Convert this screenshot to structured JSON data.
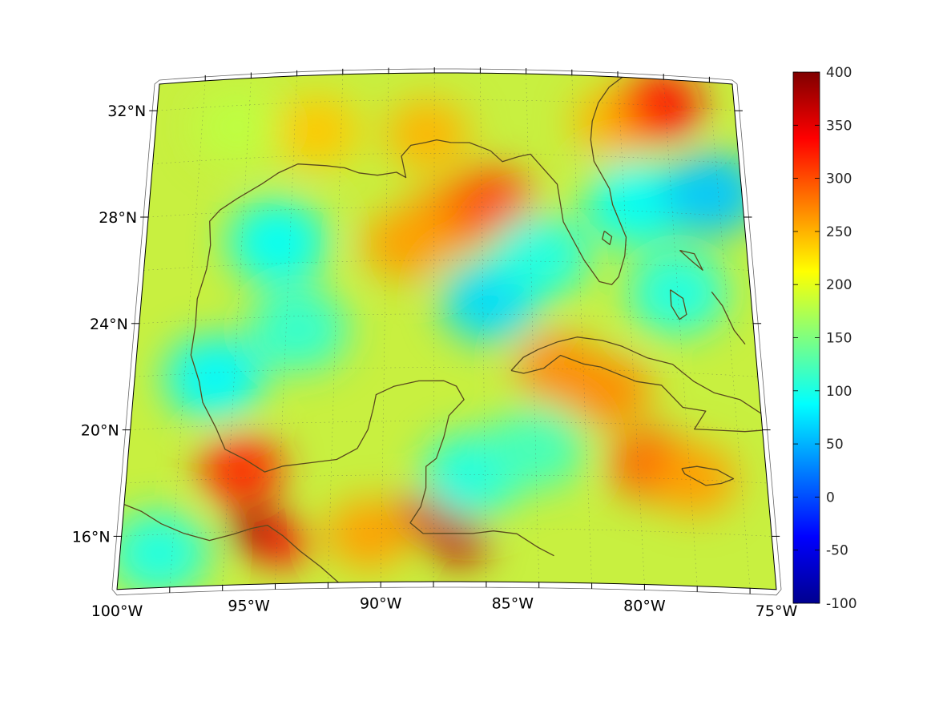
{
  "map": {
    "lon_range": [
      -100,
      -75
    ],
    "lat_range": [
      14,
      33
    ],
    "projection": "conic",
    "grid": true,
    "lat_labels": [
      {
        "value": 32,
        "text": "32°N"
      },
      {
        "value": 28,
        "text": "28°N"
      },
      {
        "value": 24,
        "text": "24°N"
      },
      {
        "value": 20,
        "text": "20°N"
      },
      {
        "value": 16,
        "text": "16°N"
      }
    ],
    "lon_labels": [
      {
        "value": -100,
        "text": "100°W"
      },
      {
        "value": -95,
        "text": "95°W"
      },
      {
        "value": -90,
        "text": "90°W"
      },
      {
        "value": -85,
        "text": "85°W"
      },
      {
        "value": -80,
        "text": "80°W"
      },
      {
        "value": -75,
        "text": "75°W"
      }
    ],
    "coastline_color": "#5a4a1e",
    "field_color_blobs": [
      {
        "lon": -94.5,
        "lat": 26.8,
        "value": 90
      },
      {
        "lon": -96.8,
        "lat": 21.8,
        "value": 85
      },
      {
        "lon": -93.5,
        "lat": 23.5,
        "value": 110
      },
      {
        "lon": -85.7,
        "lat": 24.5,
        "value": 70
      },
      {
        "lon": -87.5,
        "lat": 27.5,
        "value": 270
      },
      {
        "lon": -85.6,
        "lat": 28.2,
        "value": 300
      },
      {
        "lon": -89.2,
        "lat": 26.6,
        "value": 260
      },
      {
        "lon": -88.3,
        "lat": 30.7,
        "value": 250
      },
      {
        "lon": -93.0,
        "lat": 30.9,
        "value": 240
      },
      {
        "lon": -80.2,
        "lat": 31.3,
        "value": 250
      },
      {
        "lon": -78.2,
        "lat": 32.0,
        "value": 330
      },
      {
        "lon": -79.5,
        "lat": 28.3,
        "value": 90
      },
      {
        "lon": -76.3,
        "lat": 28.8,
        "value": 60
      },
      {
        "lon": -78.0,
        "lat": 25.0,
        "value": 100
      },
      {
        "lon": -83.6,
        "lat": 26.2,
        "value": 100
      },
      {
        "lon": -81.0,
        "lat": 21.2,
        "value": 270
      },
      {
        "lon": -83.0,
        "lat": 22.0,
        "value": 270
      },
      {
        "lon": -79.5,
        "lat": 18.5,
        "value": 290
      },
      {
        "lon": -77.8,
        "lat": 18.0,
        "value": 260
      },
      {
        "lon": -94.8,
        "lat": 16.0,
        "value": 400
      },
      {
        "lon": -95.5,
        "lat": 18.3,
        "value": 320
      },
      {
        "lon": -93.8,
        "lat": 15.5,
        "value": 340
      },
      {
        "lon": -88.2,
        "lat": 16.5,
        "value": 360
      },
      {
        "lon": -87.0,
        "lat": 15.5,
        "value": 370
      },
      {
        "lon": -90.5,
        "lat": 15.8,
        "value": 260
      },
      {
        "lon": -98.5,
        "lat": 15.3,
        "value": 100
      },
      {
        "lon": -86.5,
        "lat": 18.0,
        "value": 100
      },
      {
        "lon": -84.0,
        "lat": 19.0,
        "value": 120
      },
      {
        "lon": -96.5,
        "lat": 31.2,
        "value": 180
      }
    ]
  },
  "colorbar": {
    "min": -100,
    "max": 400,
    "ticks": [
      "400",
      "350",
      "300",
      "250",
      "200",
      "150",
      "100",
      "50",
      "0",
      "-50",
      "-100"
    ],
    "colormap": "jet"
  }
}
